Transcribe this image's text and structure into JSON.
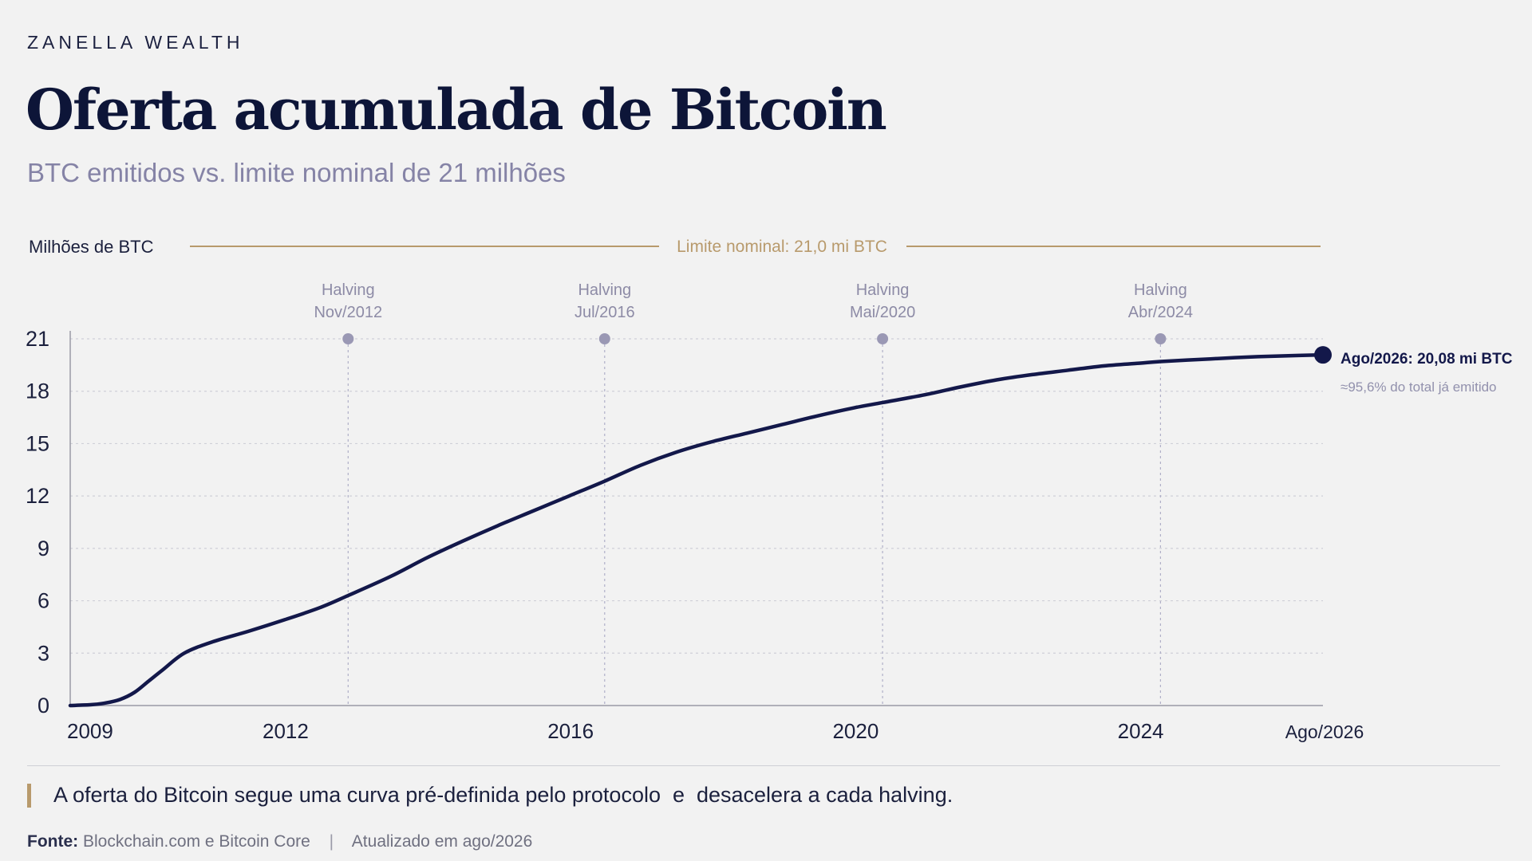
{
  "brand": "ZANELLA WEALTH",
  "title": "Oferta acumulada de Bitcoin",
  "subtitle": "BTC emitidos vs. limite nominal de 21 milhões",
  "note": "A oferta do Bitcoin segue uma curva pré-definida pelo protocolo  e  desacelera a cada halving.",
  "source": {
    "label": "Fonte:",
    "text": "Blockchain.com e Bitcoin Core",
    "separator": "|",
    "updated": "Atualizado em ago/2026"
  },
  "colors": {
    "line": "#13184a",
    "limit": "#b89a6c",
    "halving": "#9a98b4",
    "grid": "#cfd0d8"
  },
  "chart_data": {
    "type": "line",
    "ylabel": "Milhões de BTC",
    "ylim": [
      0,
      21
    ],
    "yticks": [
      0,
      3,
      6,
      9,
      12,
      15,
      18,
      21
    ],
    "ytick_labels": [
      "0",
      "3",
      "6",
      "9",
      "12",
      "15",
      "18",
      "21"
    ],
    "xlim": [
      2009.0,
      2026.58
    ],
    "xticks": [
      {
        "x": 2009.0,
        "label": "2009"
      },
      {
        "x": 2012.0,
        "label": "2012"
      },
      {
        "x": 2016.0,
        "label": "2016"
      },
      {
        "x": 2020.0,
        "label": "2020"
      },
      {
        "x": 2024.0,
        "label": "2024"
      },
      {
        "x": 2026.58,
        "label": "Ago/2026"
      }
    ],
    "grid": true,
    "limit_line": {
      "value": 21.0,
      "label": "Limite nominal: 21,0 mi BTC"
    },
    "halvings": [
      {
        "x": 2012.9,
        "label1": "Halving",
        "label2": "Nov/2012"
      },
      {
        "x": 2016.5,
        "label1": "Halving",
        "label2": "Jul/2016"
      },
      {
        "x": 2020.4,
        "label1": "Halving",
        "label2": "Mai/2020"
      },
      {
        "x": 2024.3,
        "label1": "Halving",
        "label2": "Abr/2024"
      }
    ],
    "series": [
      {
        "x": [
          2009.0,
          2009.3,
          2009.5,
          2009.7,
          2009.9,
          2010.1,
          2010.3,
          2010.6,
          2011.0,
          2011.5,
          2012.0,
          2012.5,
          2012.9,
          2013.5,
          2014.0,
          2014.5,
          2015.0,
          2015.5,
          2016.0,
          2016.5,
          2017.0,
          2017.5,
          2018.0,
          2018.5,
          2019.0,
          2019.5,
          2020.0,
          2020.4,
          2021.0,
          2021.5,
          2022.0,
          2022.5,
          2023.0,
          2023.5,
          2024.0,
          2024.3,
          2025.0,
          2025.5,
          2026.0,
          2026.58
        ],
        "y": [
          0,
          0.05,
          0.15,
          0.35,
          0.75,
          1.4,
          2.05,
          3.0,
          3.65,
          4.25,
          4.9,
          5.6,
          6.3,
          7.4,
          8.45,
          9.4,
          10.3,
          11.15,
          12.0,
          12.85,
          13.75,
          14.5,
          15.1,
          15.6,
          16.1,
          16.6,
          17.05,
          17.35,
          17.8,
          18.25,
          18.65,
          18.95,
          19.2,
          19.45,
          19.6,
          19.7,
          19.85,
          19.95,
          20.02,
          20.08
        ]
      }
    ],
    "endpoint": {
      "x": 2026.58,
      "y": 20.08,
      "label": "Ago/2026: 20,08 mi BTC",
      "sublabel": "≈95,6% do total já emitido"
    }
  }
}
